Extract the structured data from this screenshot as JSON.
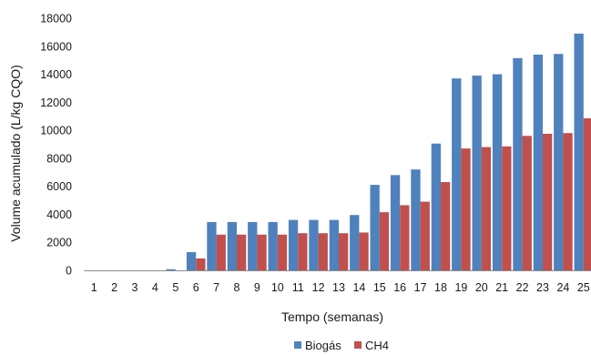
{
  "chart_data": {
    "type": "bar",
    "xlabel": "Tempo (semanas)",
    "ylabel": "Volume acumulado (L/kg CQO)",
    "ylim": [
      0,
      18000
    ],
    "yticks": [
      0,
      2000,
      4000,
      6000,
      8000,
      10000,
      12000,
      14000,
      16000,
      18000
    ],
    "categories": [
      "1",
      "2",
      "3",
      "4",
      "5",
      "6",
      "7",
      "8",
      "9",
      "10",
      "11",
      "12",
      "13",
      "14",
      "15",
      "16",
      "17",
      "18",
      "19",
      "20",
      "21",
      "22",
      "23",
      "24",
      "25"
    ],
    "series": [
      {
        "name": "Biogás",
        "color": "#4f81bd",
        "values": [
          0,
          0,
          0,
          0,
          80,
          1300,
          3450,
          3450,
          3450,
          3450,
          3600,
          3600,
          3600,
          3950,
          6100,
          6800,
          7200,
          9050,
          13700,
          13900,
          14000,
          15150,
          15400,
          15450,
          16900
        ]
      },
      {
        "name": "CH4",
        "color": "#c0504d",
        "values": [
          0,
          0,
          0,
          0,
          0,
          850,
          2550,
          2550,
          2550,
          2550,
          2650,
          2650,
          2650,
          2700,
          4150,
          4650,
          4900,
          6300,
          8700,
          8800,
          8850,
          9600,
          9750,
          9800,
          10850
        ]
      }
    ],
    "grid": false,
    "legend": "bottom"
  }
}
